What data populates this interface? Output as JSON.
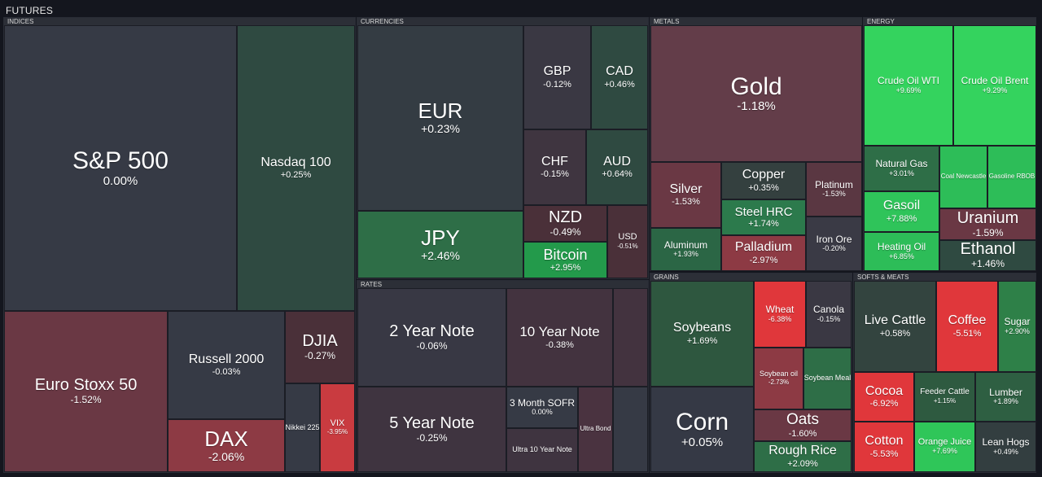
{
  "header": {
    "title": "FUTURES"
  },
  "groups": {
    "indices": "INDICES",
    "currencies": "CURRENCIES",
    "metals": "METALS",
    "energy": "ENERGY",
    "rates": "RATES",
    "grains": "GRAINS",
    "softs": "SOFTS & MEATS"
  },
  "tiles": {
    "sp500": {
      "name": "S&P 500",
      "change": "0.00%"
    },
    "nasdaq100": {
      "name": "Nasdaq 100",
      "change": "+0.25%"
    },
    "eurostoxx50": {
      "name": "Euro Stoxx 50",
      "change": "-1.52%"
    },
    "russell2000": {
      "name": "Russell 2000",
      "change": "-0.03%"
    },
    "djia": {
      "name": "DJIA",
      "change": "-0.27%"
    },
    "dax": {
      "name": "DAX",
      "change": "-2.06%"
    },
    "nikkei225": {
      "name": "Nikkei 225",
      "change": ""
    },
    "vix": {
      "name": "VIX",
      "change": "-3.95%"
    },
    "eur": {
      "name": "EUR",
      "change": "+0.23%"
    },
    "gbp": {
      "name": "GBP",
      "change": "-0.12%"
    },
    "cad": {
      "name": "CAD",
      "change": "+0.46%"
    },
    "chf": {
      "name": "CHF",
      "change": "-0.15%"
    },
    "aud": {
      "name": "AUD",
      "change": "+0.64%"
    },
    "jpy": {
      "name": "JPY",
      "change": "+2.46%"
    },
    "nzd": {
      "name": "NZD",
      "change": "-0.49%"
    },
    "usd": {
      "name": "USD",
      "change": "-0.51%"
    },
    "bitcoin": {
      "name": "Bitcoin",
      "change": "+2.95%"
    },
    "gold": {
      "name": "Gold",
      "change": "-1.18%"
    },
    "silver": {
      "name": "Silver",
      "change": "-1.53%"
    },
    "copper": {
      "name": "Copper",
      "change": "+0.35%"
    },
    "platinum": {
      "name": "Platinum",
      "change": "-1.53%"
    },
    "steelhrc": {
      "name": "Steel HRC",
      "change": "+1.74%"
    },
    "aluminum": {
      "name": "Aluminum",
      "change": "+1.93%"
    },
    "palladium": {
      "name": "Palladium",
      "change": "-2.97%"
    },
    "ironore": {
      "name": "Iron Ore",
      "change": "-0.20%"
    },
    "crudewti": {
      "name": "Crude Oil WTI",
      "change": "+9.69%"
    },
    "crudebrent": {
      "name": "Crude Oil Brent",
      "change": "+9.29%"
    },
    "natgas": {
      "name": "Natural Gas",
      "change": "+3.01%"
    },
    "coalnewcastle": {
      "name": "Coal Newcastle",
      "change": ""
    },
    "gasolinerbob": {
      "name": "Gasoline RBOB",
      "change": ""
    },
    "gasoil": {
      "name": "Gasoil",
      "change": "+7.88%"
    },
    "uranium": {
      "name": "Uranium",
      "change": "-1.59%"
    },
    "heatingoil": {
      "name": "Heating Oil",
      "change": "+6.85%"
    },
    "ethanol": {
      "name": "Ethanol",
      "change": "+1.46%"
    },
    "note2y": {
      "name": "2 Year Note",
      "change": "-0.06%"
    },
    "note10y": {
      "name": "10 Year Note",
      "change": "-0.38%"
    },
    "note5y": {
      "name": "5 Year Note",
      "change": "-0.25%"
    },
    "sofr3m": {
      "name": "3 Month SOFR",
      "change": "0.00%"
    },
    "ultra10y": {
      "name": "Ultra 10 Year Note",
      "change": ""
    },
    "ultrabond": {
      "name": "Ultra Bond",
      "change": ""
    },
    "soybeans": {
      "name": "Soybeans",
      "change": "+1.69%"
    },
    "wheat": {
      "name": "Wheat",
      "change": "-6.38%"
    },
    "canola": {
      "name": "Canola",
      "change": "-0.15%"
    },
    "soybeanoil": {
      "name": "Soybean oil",
      "change": "-2.73%"
    },
    "soybeanmeal": {
      "name": "Soybean Meal",
      "change": ""
    },
    "corn": {
      "name": "Corn",
      "change": "+0.05%"
    },
    "oats": {
      "name": "Oats",
      "change": "-1.60%"
    },
    "roughrice": {
      "name": "Rough Rice",
      "change": "+2.09%"
    },
    "livecattle": {
      "name": "Live Cattle",
      "change": "+0.58%"
    },
    "coffee": {
      "name": "Coffee",
      "change": "-5.51%"
    },
    "sugar": {
      "name": "Sugar",
      "change": "+2.90%"
    },
    "cocoa": {
      "name": "Cocoa",
      "change": "-6.92%"
    },
    "feedercattle": {
      "name": "Feeder Cattle",
      "change": "+1.15%"
    },
    "lumber": {
      "name": "Lumber",
      "change": "+1.89%"
    },
    "cotton": {
      "name": "Cotton",
      "change": "-5.53%"
    },
    "orangejuice": {
      "name": "Orange Juice",
      "change": "+7.69%"
    },
    "leanhogs": {
      "name": "Lean Hogs",
      "change": "+0.49%"
    }
  }
}
